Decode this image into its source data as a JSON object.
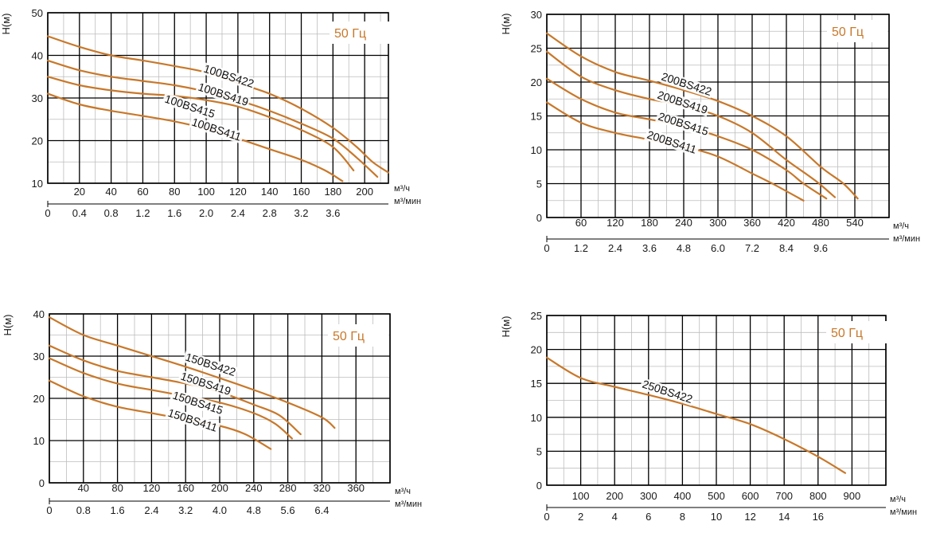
{
  "colors": {
    "curve": "#c8782a",
    "grid_major": "#000000",
    "grid_minor": "#bdbdbd",
    "freq_text": "#c8782a"
  },
  "chart_data": [
    {
      "type": "line",
      "frequency_label": "50 Гц",
      "ylabel": "H(м)",
      "x_unit_primary": "м³/ч",
      "x_unit_secondary": "м³/мин",
      "xlim": [
        0,
        215
      ],
      "ylim": [
        10,
        50
      ],
      "y_ticks": [
        "10",
        "20",
        "30",
        "40",
        "50"
      ],
      "x_ticks_primary": [
        "20",
        "40",
        "60",
        "80",
        "100",
        "120",
        "140",
        "160",
        "180",
        "200"
      ],
      "x_ticks_secondary": [
        "0",
        "0.4",
        "0.8",
        "1.2",
        "1.6",
        "2.0",
        "2.4",
        "2.8",
        "3.2",
        "3.6"
      ],
      "series": [
        {
          "name": "100BS422",
          "x": [
            0,
            20,
            40,
            60,
            80,
            100,
            120,
            140,
            160,
            180,
            195,
            205,
            215
          ],
          "y": [
            44.5,
            42,
            40,
            38.8,
            37.5,
            36,
            33.5,
            31,
            27.5,
            23,
            18.5,
            15,
            12.5
          ]
        },
        {
          "name": "100BS419",
          "x": [
            0,
            20,
            40,
            60,
            80,
            100,
            120,
            140,
            160,
            180,
            195,
            208
          ],
          "y": [
            38.8,
            36.5,
            35,
            34,
            33,
            31.5,
            29.5,
            27,
            24,
            20.5,
            16,
            11.5
          ]
        },
        {
          "name": "100BS415",
          "x": [
            0,
            20,
            40,
            60,
            80,
            100,
            120,
            140,
            160,
            180,
            193
          ],
          "y": [
            35,
            33,
            31.8,
            31,
            30.5,
            29.5,
            28,
            25.5,
            22.5,
            18.5,
            13
          ]
        },
        {
          "name": "100BS411",
          "x": [
            0,
            20,
            40,
            60,
            80,
            100,
            120,
            140,
            160,
            175,
            186
          ],
          "y": [
            31,
            28.5,
            27,
            25.8,
            24.5,
            22.8,
            20.5,
            18,
            15.5,
            13,
            10.5
          ]
        }
      ]
    },
    {
      "type": "line",
      "frequency_label": "50 Гц",
      "ylabel": "H(м)",
      "x_unit_primary": "м³/ч",
      "x_unit_secondary": "м³/мин",
      "xlim": [
        0,
        600
      ],
      "ylim": [
        0,
        30
      ],
      "y_ticks": [
        "0",
        "5",
        "10",
        "15",
        "20",
        "25",
        "30"
      ],
      "x_ticks_primary": [
        "60",
        "120",
        "180",
        "240",
        "300",
        "360",
        "420",
        "480",
        "540"
      ],
      "x_ticks_secondary": [
        "0",
        "1.2",
        "2.4",
        "3.6",
        "4.8",
        "6.0",
        "7.2",
        "8.4",
        "9.6"
      ],
      "series": [
        {
          "name": "200BS422",
          "x": [
            0,
            60,
            120,
            180,
            240,
            300,
            360,
            420,
            480,
            520,
            545
          ],
          "y": [
            27.2,
            23.8,
            21.5,
            20.2,
            18.8,
            17.2,
            15,
            12,
            7.5,
            5,
            2.8
          ]
        },
        {
          "name": "200BS419",
          "x": [
            0,
            60,
            120,
            180,
            240,
            300,
            360,
            420,
            470,
            505
          ],
          "y": [
            24.5,
            20.8,
            18.8,
            17.5,
            16.5,
            15,
            12.5,
            8.5,
            5.5,
            3
          ]
        },
        {
          "name": "200BS415",
          "x": [
            0,
            60,
            120,
            180,
            240,
            300,
            360,
            420,
            450,
            490
          ],
          "y": [
            20.5,
            17.5,
            15.5,
            14.5,
            13.5,
            12,
            10,
            7,
            5,
            2.8
          ]
        },
        {
          "name": "200BS411",
          "x": [
            0,
            60,
            120,
            180,
            240,
            300,
            360,
            400,
            450
          ],
          "y": [
            17,
            14,
            12.5,
            11.5,
            10.5,
            9,
            6.5,
            4.8,
            2.5
          ]
        }
      ]
    },
    {
      "type": "line",
      "frequency_label": "50 Гц",
      "ylabel": "H(м)",
      "x_unit_primary": "м³/ч",
      "x_unit_secondary": "м³/мин",
      "xlim": [
        0,
        400
      ],
      "ylim": [
        0,
        40
      ],
      "y_ticks": [
        "0",
        "10",
        "20",
        "30",
        "40"
      ],
      "x_ticks_primary": [
        "40",
        "80",
        "120",
        "160",
        "200",
        "240",
        "280",
        "320",
        "360"
      ],
      "x_ticks_secondary": [
        "0",
        "0.8",
        "1.6",
        "2.4",
        "3.2",
        "4.0",
        "4.8",
        "5.6",
        "6.4"
      ],
      "series": [
        {
          "name": "150BS422",
          "x": [
            0,
            40,
            80,
            120,
            160,
            200,
            240,
            280,
            320,
            335
          ],
          "y": [
            39.2,
            35,
            32.5,
            30,
            27.5,
            24.8,
            22,
            19,
            15.5,
            13
          ]
        },
        {
          "name": "150BS419",
          "x": [
            0,
            40,
            80,
            120,
            160,
            200,
            240,
            270,
            295
          ],
          "y": [
            32.5,
            29,
            26.5,
            25,
            23.5,
            21.5,
            18.5,
            16,
            11.5
          ]
        },
        {
          "name": "150BS415",
          "x": [
            0,
            40,
            80,
            120,
            160,
            200,
            240,
            265,
            285
          ],
          "y": [
            29.5,
            26,
            23.5,
            22,
            20.5,
            19,
            16.5,
            14,
            10.5
          ]
        },
        {
          "name": "150BS411",
          "x": [
            0,
            40,
            80,
            120,
            160,
            200,
            230,
            260
          ],
          "y": [
            24.2,
            20.5,
            18,
            16.5,
            15,
            13.5,
            11.5,
            8
          ]
        }
      ]
    },
    {
      "type": "line",
      "frequency_label": "50 Гц",
      "ylabel": "H(м)",
      "x_unit_primary": "м³/ч",
      "x_unit_secondary": "м³/мин",
      "xlim": [
        0,
        1000
      ],
      "ylim": [
        0,
        25
      ],
      "y_ticks": [
        "0",
        "5",
        "10",
        "15",
        "20",
        "25"
      ],
      "x_ticks_primary": [
        "100",
        "200",
        "300",
        "400",
        "500",
        "600",
        "700",
        "800",
        "900"
      ],
      "x_ticks_secondary": [
        "0",
        "2",
        "4",
        "6",
        "8",
        "10",
        "12",
        "14",
        "16"
      ],
      "series": [
        {
          "name": "250BS422",
          "x": [
            0,
            100,
            200,
            300,
            400,
            500,
            600,
            700,
            800,
            880
          ],
          "y": [
            18.8,
            15.8,
            14.5,
            13.3,
            12,
            10.5,
            9,
            6.8,
            4.2,
            1.8
          ]
        }
      ]
    }
  ]
}
